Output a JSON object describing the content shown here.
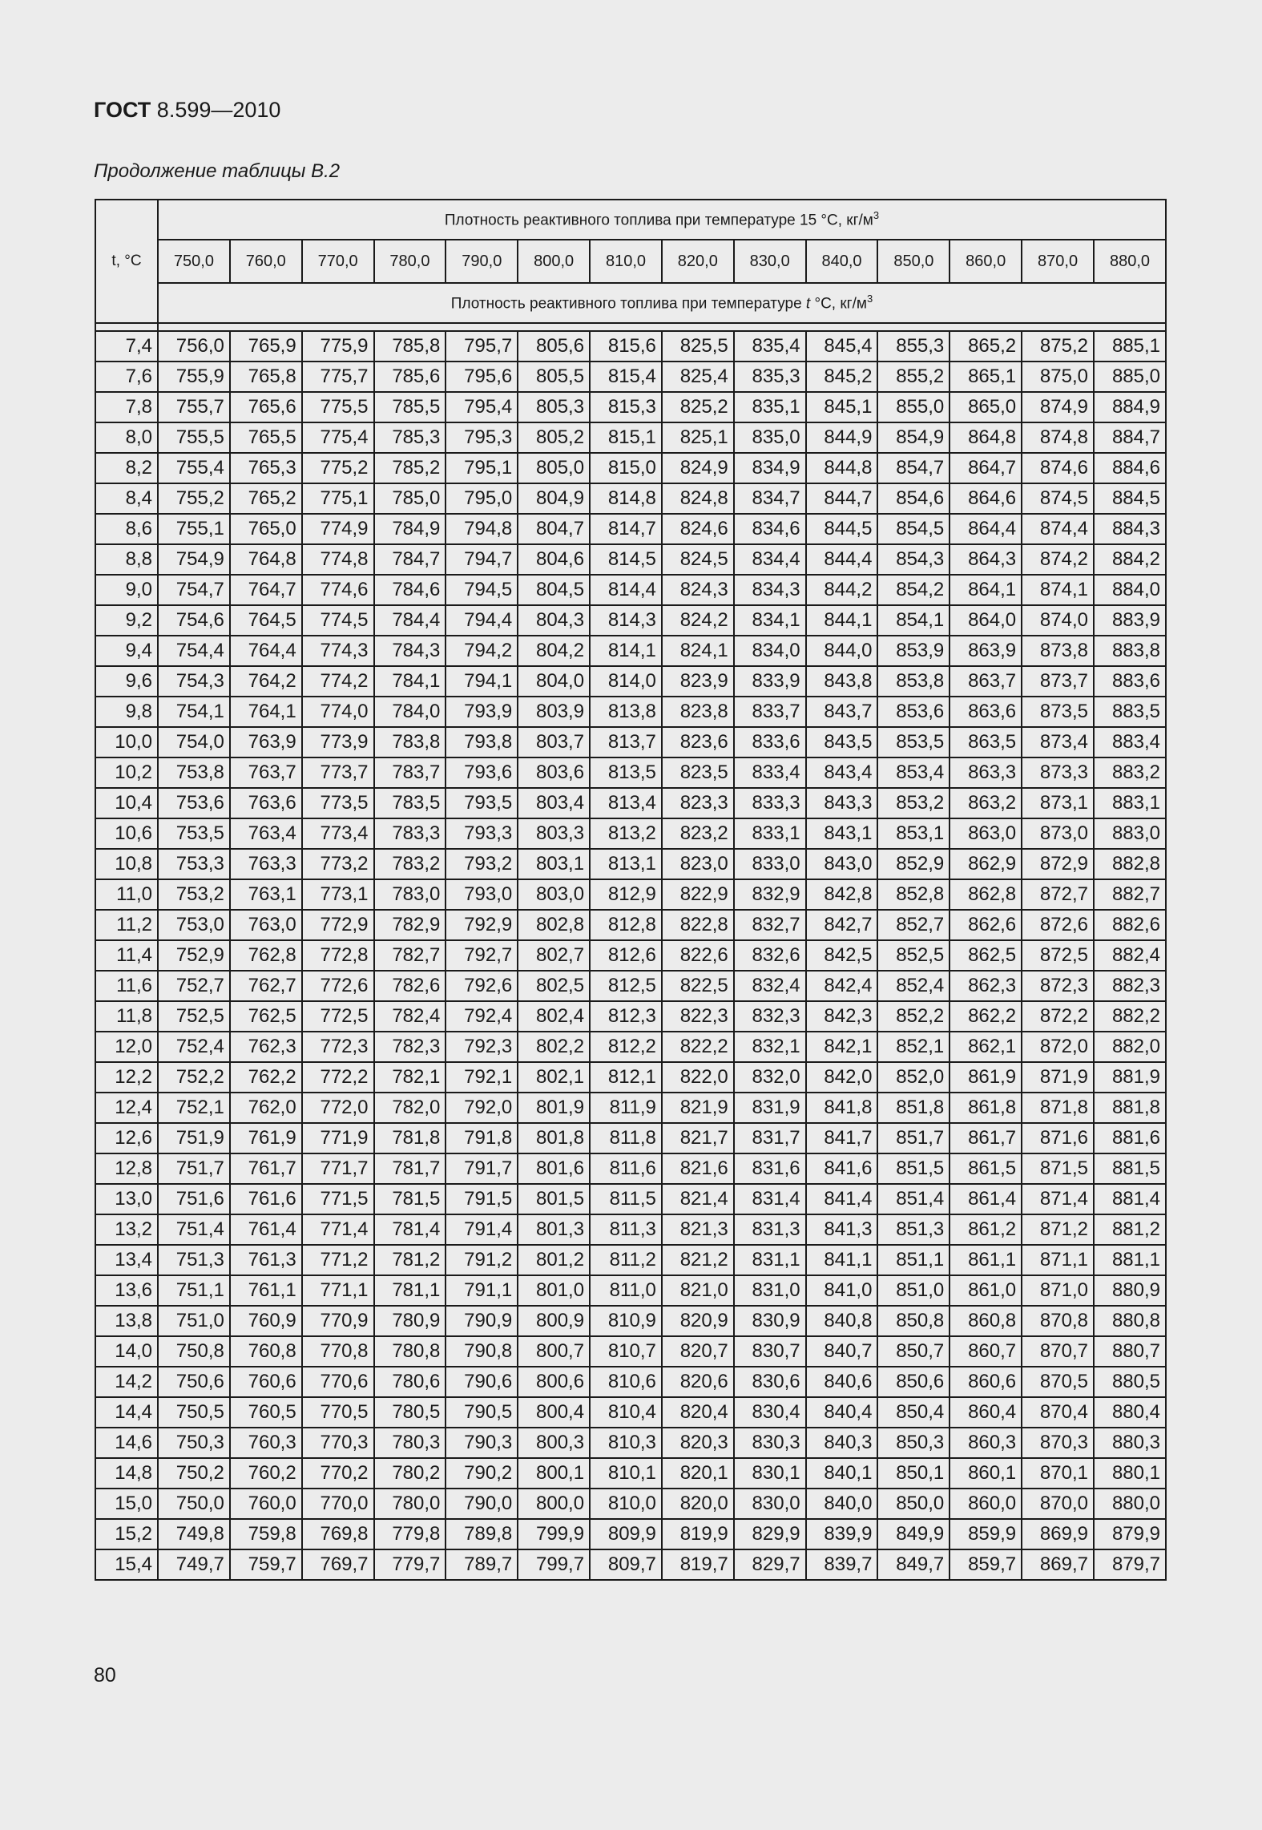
{
  "header": {
    "standard_bold": "ГОСТ",
    "standard_rest": "8.599—2010"
  },
  "caption": "Продолжение таблицы В.2",
  "page_number": "80",
  "table": {
    "t_label": "t, °C",
    "top_header": "Плотность реактивного топлива при температуре 15 °С, кг/м",
    "top_header_sup": "3",
    "columns": [
      "750,0",
      "760,0",
      "770,0",
      "780,0",
      "790,0",
      "800,0",
      "810,0",
      "820,0",
      "830,0",
      "840,0",
      "850,0",
      "860,0",
      "870,0",
      "880,0"
    ],
    "sub_header_pre": "Плотность реактивного топлива при температуре ",
    "sub_header_t": "t",
    "sub_header_post": " °С, кг/м",
    "sub_header_sup": "3",
    "rows": [
      [
        "7,4",
        "756,0",
        "765,9",
        "775,9",
        "785,8",
        "795,7",
        "805,6",
        "815,6",
        "825,5",
        "835,4",
        "845,4",
        "855,3",
        "865,2",
        "875,2",
        "885,1"
      ],
      [
        "7,6",
        "755,9",
        "765,8",
        "775,7",
        "785,6",
        "795,6",
        "805,5",
        "815,4",
        "825,4",
        "835,3",
        "845,2",
        "855,2",
        "865,1",
        "875,0",
        "885,0"
      ],
      [
        "7,8",
        "755,7",
        "765,6",
        "775,5",
        "785,5",
        "795,4",
        "805,3",
        "815,3",
        "825,2",
        "835,1",
        "845,1",
        "855,0",
        "865,0",
        "874,9",
        "884,9"
      ],
      [
        "8,0",
        "755,5",
        "765,5",
        "775,4",
        "785,3",
        "795,3",
        "805,2",
        "815,1",
        "825,1",
        "835,0",
        "844,9",
        "854,9",
        "864,8",
        "874,8",
        "884,7"
      ],
      [
        "8,2",
        "755,4",
        "765,3",
        "775,2",
        "785,2",
        "795,1",
        "805,0",
        "815,0",
        "824,9",
        "834,9",
        "844,8",
        "854,7",
        "864,7",
        "874,6",
        "884,6"
      ],
      [
        "8,4",
        "755,2",
        "765,2",
        "775,1",
        "785,0",
        "795,0",
        "804,9",
        "814,8",
        "824,8",
        "834,7",
        "844,7",
        "854,6",
        "864,6",
        "874,5",
        "884,5"
      ],
      [
        "8,6",
        "755,1",
        "765,0",
        "774,9",
        "784,9",
        "794,8",
        "804,7",
        "814,7",
        "824,6",
        "834,6",
        "844,5",
        "854,5",
        "864,4",
        "874,4",
        "884,3"
      ],
      [
        "8,8",
        "754,9",
        "764,8",
        "774,8",
        "784,7",
        "794,7",
        "804,6",
        "814,5",
        "824,5",
        "834,4",
        "844,4",
        "854,3",
        "864,3",
        "874,2",
        "884,2"
      ],
      [
        "9,0",
        "754,7",
        "764,7",
        "774,6",
        "784,6",
        "794,5",
        "804,5",
        "814,4",
        "824,3",
        "834,3",
        "844,2",
        "854,2",
        "864,1",
        "874,1",
        "884,0"
      ],
      [
        "9,2",
        "754,6",
        "764,5",
        "774,5",
        "784,4",
        "794,4",
        "804,3",
        "814,3",
        "824,2",
        "834,1",
        "844,1",
        "854,1",
        "864,0",
        "874,0",
        "883,9"
      ],
      [
        "9,4",
        "754,4",
        "764,4",
        "774,3",
        "784,3",
        "794,2",
        "804,2",
        "814,1",
        "824,1",
        "834,0",
        "844,0",
        "853,9",
        "863,9",
        "873,8",
        "883,8"
      ],
      [
        "9,6",
        "754,3",
        "764,2",
        "774,2",
        "784,1",
        "794,1",
        "804,0",
        "814,0",
        "823,9",
        "833,9",
        "843,8",
        "853,8",
        "863,7",
        "873,7",
        "883,6"
      ],
      [
        "9,8",
        "754,1",
        "764,1",
        "774,0",
        "784,0",
        "793,9",
        "803,9",
        "813,8",
        "823,8",
        "833,7",
        "843,7",
        "853,6",
        "863,6",
        "873,5",
        "883,5"
      ],
      [
        "10,0",
        "754,0",
        "763,9",
        "773,9",
        "783,8",
        "793,8",
        "803,7",
        "813,7",
        "823,6",
        "833,6",
        "843,5",
        "853,5",
        "863,5",
        "873,4",
        "883,4"
      ],
      [
        "10,2",
        "753,8",
        "763,7",
        "773,7",
        "783,7",
        "793,6",
        "803,6",
        "813,5",
        "823,5",
        "833,4",
        "843,4",
        "853,4",
        "863,3",
        "873,3",
        "883,2"
      ],
      [
        "10,4",
        "753,6",
        "763,6",
        "773,5",
        "783,5",
        "793,5",
        "803,4",
        "813,4",
        "823,3",
        "833,3",
        "843,3",
        "853,2",
        "863,2",
        "873,1",
        "883,1"
      ],
      [
        "10,6",
        "753,5",
        "763,4",
        "773,4",
        "783,3",
        "793,3",
        "803,3",
        "813,2",
        "823,2",
        "833,1",
        "843,1",
        "853,1",
        "863,0",
        "873,0",
        "883,0"
      ],
      [
        "10,8",
        "753,3",
        "763,3",
        "773,2",
        "783,2",
        "793,2",
        "803,1",
        "813,1",
        "823,0",
        "833,0",
        "843,0",
        "852,9",
        "862,9",
        "872,9",
        "882,8"
      ],
      [
        "11,0",
        "753,2",
        "763,1",
        "773,1",
        "783,0",
        "793,0",
        "803,0",
        "812,9",
        "822,9",
        "832,9",
        "842,8",
        "852,8",
        "862,8",
        "872,7",
        "882,7"
      ],
      [
        "11,2",
        "753,0",
        "763,0",
        "772,9",
        "782,9",
        "792,9",
        "802,8",
        "812,8",
        "822,8",
        "832,7",
        "842,7",
        "852,7",
        "862,6",
        "872,6",
        "882,6"
      ],
      [
        "11,4",
        "752,9",
        "762,8",
        "772,8",
        "782,7",
        "792,7",
        "802,7",
        "812,6",
        "822,6",
        "832,6",
        "842,5",
        "852,5",
        "862,5",
        "872,5",
        "882,4"
      ],
      [
        "11,6",
        "752,7",
        "762,7",
        "772,6",
        "782,6",
        "792,6",
        "802,5",
        "812,5",
        "822,5",
        "832,4",
        "842,4",
        "852,4",
        "862,3",
        "872,3",
        "882,3"
      ],
      [
        "11,8",
        "752,5",
        "762,5",
        "772,5",
        "782,4",
        "792,4",
        "802,4",
        "812,3",
        "822,3",
        "832,3",
        "842,3",
        "852,2",
        "862,2",
        "872,2",
        "882,2"
      ],
      [
        "12,0",
        "752,4",
        "762,3",
        "772,3",
        "782,3",
        "792,3",
        "802,2",
        "812,2",
        "822,2",
        "832,1",
        "842,1",
        "852,1",
        "862,1",
        "872,0",
        "882,0"
      ],
      [
        "12,2",
        "752,2",
        "762,2",
        "772,2",
        "782,1",
        "792,1",
        "802,1",
        "812,1",
        "822,0",
        "832,0",
        "842,0",
        "852,0",
        "861,9",
        "871,9",
        "881,9"
      ],
      [
        "12,4",
        "752,1",
        "762,0",
        "772,0",
        "782,0",
        "792,0",
        "801,9",
        "811,9",
        "821,9",
        "831,9",
        "841,8",
        "851,8",
        "861,8",
        "871,8",
        "881,8"
      ],
      [
        "12,6",
        "751,9",
        "761,9",
        "771,9",
        "781,8",
        "791,8",
        "801,8",
        "811,8",
        "821,7",
        "831,7",
        "841,7",
        "851,7",
        "861,7",
        "871,6",
        "881,6"
      ],
      [
        "12,8",
        "751,7",
        "761,7",
        "771,7",
        "781,7",
        "791,7",
        "801,6",
        "811,6",
        "821,6",
        "831,6",
        "841,6",
        "851,5",
        "861,5",
        "871,5",
        "881,5"
      ],
      [
        "13,0",
        "751,6",
        "761,6",
        "771,5",
        "781,5",
        "791,5",
        "801,5",
        "811,5",
        "821,4",
        "831,4",
        "841,4",
        "851,4",
        "861,4",
        "871,4",
        "881,4"
      ],
      [
        "13,2",
        "751,4",
        "761,4",
        "771,4",
        "781,4",
        "791,4",
        "801,3",
        "811,3",
        "821,3",
        "831,3",
        "841,3",
        "851,3",
        "861,2",
        "871,2",
        "881,2"
      ],
      [
        "13,4",
        "751,3",
        "761,3",
        "771,2",
        "781,2",
        "791,2",
        "801,2",
        "811,2",
        "821,2",
        "831,1",
        "841,1",
        "851,1",
        "861,1",
        "871,1",
        "881,1"
      ],
      [
        "13,6",
        "751,1",
        "761,1",
        "771,1",
        "781,1",
        "791,1",
        "801,0",
        "811,0",
        "821,0",
        "831,0",
        "841,0",
        "851,0",
        "861,0",
        "871,0",
        "880,9"
      ],
      [
        "13,8",
        "751,0",
        "760,9",
        "770,9",
        "780,9",
        "790,9",
        "800,9",
        "810,9",
        "820,9",
        "830,9",
        "840,8",
        "850,8",
        "860,8",
        "870,8",
        "880,8"
      ],
      [
        "14,0",
        "750,8",
        "760,8",
        "770,8",
        "780,8",
        "790,8",
        "800,7",
        "810,7",
        "820,7",
        "830,7",
        "840,7",
        "850,7",
        "860,7",
        "870,7",
        "880,7"
      ],
      [
        "14,2",
        "750,6",
        "760,6",
        "770,6",
        "780,6",
        "790,6",
        "800,6",
        "810,6",
        "820,6",
        "830,6",
        "840,6",
        "850,6",
        "860,6",
        "870,5",
        "880,5"
      ],
      [
        "14,4",
        "750,5",
        "760,5",
        "770,5",
        "780,5",
        "790,5",
        "800,4",
        "810,4",
        "820,4",
        "830,4",
        "840,4",
        "850,4",
        "860,4",
        "870,4",
        "880,4"
      ],
      [
        "14,6",
        "750,3",
        "760,3",
        "770,3",
        "780,3",
        "790,3",
        "800,3",
        "810,3",
        "820,3",
        "830,3",
        "840,3",
        "850,3",
        "860,3",
        "870,3",
        "880,3"
      ],
      [
        "14,8",
        "750,2",
        "760,2",
        "770,2",
        "780,2",
        "790,2",
        "800,1",
        "810,1",
        "820,1",
        "830,1",
        "840,1",
        "850,1",
        "860,1",
        "870,1",
        "880,1"
      ],
      [
        "15,0",
        "750,0",
        "760,0",
        "770,0",
        "780,0",
        "790,0",
        "800,0",
        "810,0",
        "820,0",
        "830,0",
        "840,0",
        "850,0",
        "860,0",
        "870,0",
        "880,0"
      ],
      [
        "15,2",
        "749,8",
        "759,8",
        "769,8",
        "779,8",
        "789,8",
        "799,9",
        "809,9",
        "819,9",
        "829,9",
        "839,9",
        "849,9",
        "859,9",
        "869,9",
        "879,9"
      ],
      [
        "15,4",
        "749,7",
        "759,7",
        "769,7",
        "779,7",
        "789,7",
        "799,7",
        "809,7",
        "819,7",
        "829,7",
        "839,7",
        "849,7",
        "859,7",
        "869,7",
        "879,7"
      ]
    ]
  }
}
